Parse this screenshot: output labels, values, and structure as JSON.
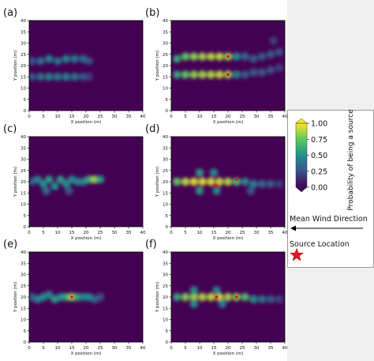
{
  "chart_data": [
    {
      "type": "heatmap",
      "panel_label": "(a)",
      "xlabel": "X position (m)",
      "ylabel": "Y position (m)",
      "xlim": [
        0,
        40
      ],
      "ylim": [
        0,
        40
      ],
      "xticks": [
        "0",
        "5",
        "10",
        "15",
        "20",
        "25",
        "30",
        "35",
        "40"
      ],
      "yticks": [
        "0",
        "5",
        "10",
        "15",
        "20",
        "25",
        "30",
        "35",
        "40"
      ],
      "hotspots": [
        {
          "x": 1,
          "y": 22,
          "p": 0.25
        },
        {
          "x": 4,
          "y": 22,
          "p": 0.38
        },
        {
          "x": 7,
          "y": 23,
          "p": 0.45
        },
        {
          "x": 10,
          "y": 22,
          "p": 0.4
        },
        {
          "x": 13,
          "y": 23,
          "p": 0.45
        },
        {
          "x": 16,
          "y": 23,
          "p": 0.42
        },
        {
          "x": 19,
          "y": 23,
          "p": 0.38
        },
        {
          "x": 21,
          "y": 22,
          "p": 0.25
        },
        {
          "x": 1,
          "y": 15,
          "p": 0.28
        },
        {
          "x": 4,
          "y": 15,
          "p": 0.4
        },
        {
          "x": 7,
          "y": 15,
          "p": 0.45
        },
        {
          "x": 10,
          "y": 15,
          "p": 0.42
        },
        {
          "x": 13,
          "y": 15,
          "p": 0.45
        },
        {
          "x": 16,
          "y": 15,
          "p": 0.4
        },
        {
          "x": 19,
          "y": 15,
          "p": 0.3
        },
        {
          "x": 21,
          "y": 15,
          "p": 0.2
        }
      ],
      "sources": []
    },
    {
      "type": "heatmap",
      "panel_label": "(b)",
      "xlabel": "X position (m)",
      "ylabel": "Y position (m)",
      "xlim": [
        0,
        40
      ],
      "ylim": [
        0,
        40
      ],
      "xticks": [
        "0",
        "5",
        "10",
        "15",
        "20",
        "25",
        "30",
        "35",
        "40"
      ],
      "yticks": [
        "0",
        "5",
        "10",
        "15",
        "20",
        "25",
        "30",
        "35",
        "40"
      ],
      "hotspots": [
        {
          "x": 2,
          "y": 23,
          "p": 0.6
        },
        {
          "x": 5,
          "y": 24,
          "p": 0.75
        },
        {
          "x": 8,
          "y": 24,
          "p": 0.82
        },
        {
          "x": 11,
          "y": 24,
          "p": 0.85
        },
        {
          "x": 14,
          "y": 24,
          "p": 0.88
        },
        {
          "x": 17,
          "y": 24,
          "p": 0.9
        },
        {
          "x": 20,
          "y": 24,
          "p": 0.85
        },
        {
          "x": 23,
          "y": 24,
          "p": 0.5
        },
        {
          "x": 26,
          "y": 24,
          "p": 0.35
        },
        {
          "x": 29,
          "y": 23,
          "p": 0.3
        },
        {
          "x": 32,
          "y": 24,
          "p": 0.3
        },
        {
          "x": 35,
          "y": 25,
          "p": 0.3
        },
        {
          "x": 38,
          "y": 26,
          "p": 0.25
        },
        {
          "x": 36,
          "y": 31,
          "p": 0.2
        },
        {
          "x": 2,
          "y": 16,
          "p": 0.6
        },
        {
          "x": 5,
          "y": 16,
          "p": 0.75
        },
        {
          "x": 8,
          "y": 16,
          "p": 0.82
        },
        {
          "x": 11,
          "y": 16,
          "p": 0.85
        },
        {
          "x": 14,
          "y": 16,
          "p": 0.88
        },
        {
          "x": 17,
          "y": 16,
          "p": 0.9
        },
        {
          "x": 20,
          "y": 16,
          "p": 0.85
        },
        {
          "x": 23,
          "y": 16,
          "p": 0.45
        },
        {
          "x": 26,
          "y": 16,
          "p": 0.3
        },
        {
          "x": 29,
          "y": 17,
          "p": 0.3
        },
        {
          "x": 32,
          "y": 17,
          "p": 0.3
        },
        {
          "x": 35,
          "y": 18,
          "p": 0.25
        },
        {
          "x": 38,
          "y": 19,
          "p": 0.2
        }
      ],
      "sources": [
        {
          "x": 20,
          "y": 24
        },
        {
          "x": 20,
          "y": 16
        }
      ]
    },
    {
      "type": "heatmap",
      "panel_label": "(c)",
      "xlabel": "X position (m)",
      "ylabel": "Y position (m)",
      "xlim": [
        0,
        40
      ],
      "ylim": [
        0,
        40
      ],
      "xticks": [
        "0",
        "5",
        "10",
        "15",
        "20",
        "25",
        "30",
        "35",
        "40"
      ],
      "yticks": [
        "0",
        "5",
        "10",
        "15",
        "20",
        "25",
        "30",
        "35",
        "40"
      ],
      "hotspots": [
        {
          "x": 1,
          "y": 20,
          "p": 0.3
        },
        {
          "x": 3,
          "y": 21,
          "p": 0.45
        },
        {
          "x": 5,
          "y": 19,
          "p": 0.5
        },
        {
          "x": 7,
          "y": 21,
          "p": 0.55
        },
        {
          "x": 9,
          "y": 18,
          "p": 0.5
        },
        {
          "x": 11,
          "y": 21,
          "p": 0.55
        },
        {
          "x": 13,
          "y": 19,
          "p": 0.5
        },
        {
          "x": 15,
          "y": 21,
          "p": 0.5
        },
        {
          "x": 17,
          "y": 20,
          "p": 0.45
        },
        {
          "x": 19,
          "y": 20,
          "p": 0.45
        },
        {
          "x": 21,
          "y": 21,
          "p": 0.6
        },
        {
          "x": 23,
          "y": 21,
          "p": 0.85
        },
        {
          "x": 25,
          "y": 21,
          "p": 0.55
        },
        {
          "x": 6,
          "y": 16,
          "p": 0.35
        },
        {
          "x": 14,
          "y": 16,
          "p": 0.3
        }
      ],
      "sources": []
    },
    {
      "type": "heatmap",
      "panel_label": "(d)",
      "xlabel": "X position (m)",
      "ylabel": "Y position (m)",
      "xlim": [
        0,
        40
      ],
      "ylim": [
        0,
        40
      ],
      "xticks": [
        "0",
        "5",
        "10",
        "15",
        "20",
        "25",
        "30",
        "35",
        "40"
      ],
      "yticks": [
        "0",
        "5",
        "10",
        "15",
        "20",
        "25",
        "30",
        "35",
        "40"
      ],
      "hotspots": [
        {
          "x": 2,
          "y": 20,
          "p": 0.75
        },
        {
          "x": 5,
          "y": 20,
          "p": 0.9
        },
        {
          "x": 8,
          "y": 20,
          "p": 0.95
        },
        {
          "x": 11,
          "y": 20,
          "p": 0.95
        },
        {
          "x": 14,
          "y": 20,
          "p": 0.95
        },
        {
          "x": 17,
          "y": 20,
          "p": 0.92
        },
        {
          "x": 20,
          "y": 20,
          "p": 0.88
        },
        {
          "x": 23,
          "y": 20,
          "p": 0.7
        },
        {
          "x": 26,
          "y": 20,
          "p": 0.5
        },
        {
          "x": 29,
          "y": 19,
          "p": 0.45
        },
        {
          "x": 32,
          "y": 19,
          "p": 0.35
        },
        {
          "x": 35,
          "y": 19,
          "p": 0.3
        },
        {
          "x": 38,
          "y": 19,
          "p": 0.2
        },
        {
          "x": 10,
          "y": 24,
          "p": 0.55
        },
        {
          "x": 15,
          "y": 24,
          "p": 0.5
        },
        {
          "x": 10,
          "y": 16,
          "p": 0.55
        },
        {
          "x": 16,
          "y": 16,
          "p": 0.5
        },
        {
          "x": 28,
          "y": 16,
          "p": 0.3
        }
      ],
      "sources": [
        {
          "x": 16,
          "y": 18
        },
        {
          "x": 23,
          "y": 21
        }
      ]
    },
    {
      "type": "heatmap",
      "panel_label": "(e)",
      "xlabel": "X position (m)",
      "ylabel": "Y position (m)",
      "xlim": [
        0,
        40
      ],
      "ylim": [
        0,
        40
      ],
      "xticks": [
        "0",
        "5",
        "10",
        "15",
        "20",
        "25",
        "30",
        "35",
        "40"
      ],
      "yticks": [
        "0",
        "5",
        "10",
        "15",
        "20",
        "25",
        "30",
        "35",
        "40"
      ],
      "hotspots": [
        {
          "x": 1,
          "y": 20,
          "p": 0.3
        },
        {
          "x": 3,
          "y": 19,
          "p": 0.45
        },
        {
          "x": 5,
          "y": 20,
          "p": 0.5
        },
        {
          "x": 7,
          "y": 21,
          "p": 0.45
        },
        {
          "x": 9,
          "y": 19,
          "p": 0.55
        },
        {
          "x": 11,
          "y": 20,
          "p": 0.5
        },
        {
          "x": 13,
          "y": 20,
          "p": 0.6
        },
        {
          "x": 15,
          "y": 20,
          "p": 0.85
        },
        {
          "x": 17,
          "y": 20,
          "p": 0.6
        },
        {
          "x": 19,
          "y": 20,
          "p": 0.45
        },
        {
          "x": 21,
          "y": 20,
          "p": 0.5
        },
        {
          "x": 23,
          "y": 19,
          "p": 0.35
        },
        {
          "x": 25,
          "y": 20,
          "p": 0.25
        }
      ],
      "sources": [
        {
          "x": 15,
          "y": 20
        }
      ]
    },
    {
      "type": "heatmap",
      "panel_label": "(f)",
      "xlabel": "X position (m)",
      "ylabel": "Y position (m)",
      "xlim": [
        0,
        40
      ],
      "ylim": [
        0,
        40
      ],
      "xticks": [
        "0",
        "5",
        "10",
        "15",
        "20",
        "25",
        "30",
        "35",
        "40"
      ],
      "yticks": [
        "0",
        "5",
        "10",
        "15",
        "20",
        "25",
        "30",
        "35",
        "40"
      ],
      "hotspots": [
        {
          "x": 2,
          "y": 20,
          "p": 0.6
        },
        {
          "x": 5,
          "y": 20,
          "p": 0.8
        },
        {
          "x": 8,
          "y": 20,
          "p": 0.85
        },
        {
          "x": 11,
          "y": 20,
          "p": 0.88
        },
        {
          "x": 14,
          "y": 20,
          "p": 0.9
        },
        {
          "x": 17,
          "y": 20,
          "p": 0.9
        },
        {
          "x": 20,
          "y": 20,
          "p": 0.85
        },
        {
          "x": 23,
          "y": 20,
          "p": 0.8
        },
        {
          "x": 26,
          "y": 20,
          "p": 0.7
        },
        {
          "x": 29,
          "y": 19,
          "p": 0.5
        },
        {
          "x": 32,
          "y": 19,
          "p": 0.4
        },
        {
          "x": 35,
          "y": 19,
          "p": 0.3
        },
        {
          "x": 38,
          "y": 19,
          "p": 0.2
        },
        {
          "x": 8,
          "y": 23,
          "p": 0.5
        },
        {
          "x": 16,
          "y": 23,
          "p": 0.45
        },
        {
          "x": 8,
          "y": 17,
          "p": 0.5
        },
        {
          "x": 18,
          "y": 17,
          "p": 0.45
        }
      ],
      "sources": [
        {
          "x": 16,
          "y": 20
        },
        {
          "x": 23,
          "y": 20
        }
      ]
    }
  ],
  "colorbar": {
    "label": "Probability of being a source",
    "ticks": [
      "0.00",
      "0.25",
      "0.50",
      "0.75",
      "1.00"
    ],
    "range": [
      0,
      1
    ],
    "colors": [
      "#440154",
      "#3b528b",
      "#21908d",
      "#5dc963",
      "#fde725"
    ]
  },
  "legend": {
    "wind_label": "Mean Wind Direction",
    "source_label": "Source Location",
    "star_color": "#e8141c"
  },
  "colors": {
    "background": "#440154",
    "source_marker": "#e8141c"
  }
}
